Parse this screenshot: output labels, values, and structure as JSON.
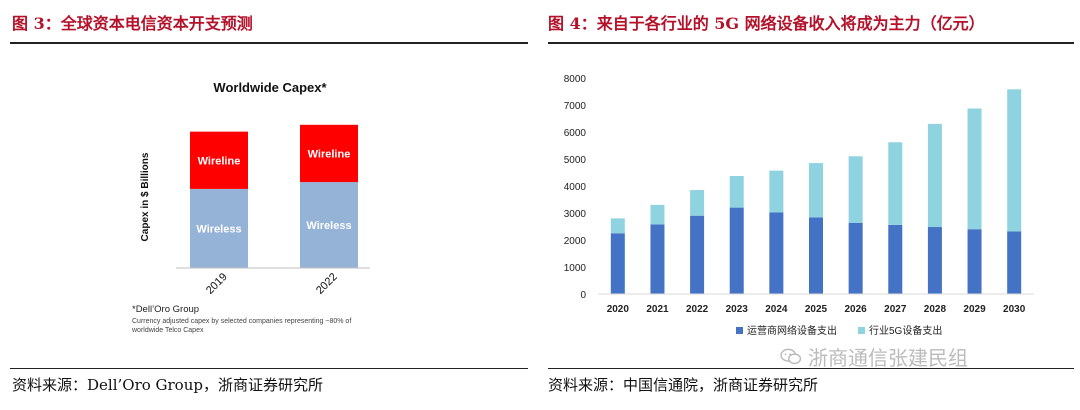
{
  "left": {
    "fig_title": "图 3：全球资本电信资本开支预测",
    "source": "资料来源：Dell’Oro Group，浙商证券研究所"
  },
  "right": {
    "fig_title": "图 4：来自于各行业的 5G 网络设备收入将成为主力（亿元）",
    "source": "资料来源：中国信通院，浙商证券研究所"
  },
  "watermark": "浙商通信张建民组",
  "chart_data": [
    {
      "type": "bar",
      "stacked": true,
      "title": "Worldwide Capex*",
      "ylabel": "Capex in $ Billions",
      "categories": [
        "2019",
        "2022"
      ],
      "series": [
        {
          "name": "Wireless",
          "values": [
            58,
            63
          ],
          "color": "#95b3d7"
        },
        {
          "name": "Wireline",
          "values": [
            42,
            42
          ],
          "color": "#ff0000"
        }
      ],
      "ylim": [
        0,
        110
      ],
      "footnote_title": "*Dell’Oro Group",
      "footnote_lines": [
        "Currency adjusted capex by selected companies representing ~80% of",
        "worldwide Telco Capex"
      ]
    },
    {
      "type": "bar",
      "stacked": true,
      "categories": [
        "2020",
        "2021",
        "2022",
        "2023",
        "2024",
        "2025",
        "2026",
        "2027",
        "2028",
        "2029",
        "2030"
      ],
      "series": [
        {
          "name": "运营商网络设备支出",
          "values": [
            2250,
            2580,
            2900,
            3200,
            3020,
            2840,
            2630,
            2560,
            2480,
            2400,
            2320
          ],
          "color": "#4472c4"
        },
        {
          "name": "行业5G设备支出",
          "values": [
            550,
            720,
            950,
            1170,
            1550,
            2010,
            2470,
            3060,
            3820,
            4470,
            5260
          ],
          "color": "#8fd3e0"
        }
      ],
      "ylim": [
        0,
        8000
      ],
      "yticks": [
        0,
        1000,
        2000,
        3000,
        4000,
        5000,
        6000,
        7000,
        8000
      ],
      "legend_position": "bottom"
    }
  ]
}
